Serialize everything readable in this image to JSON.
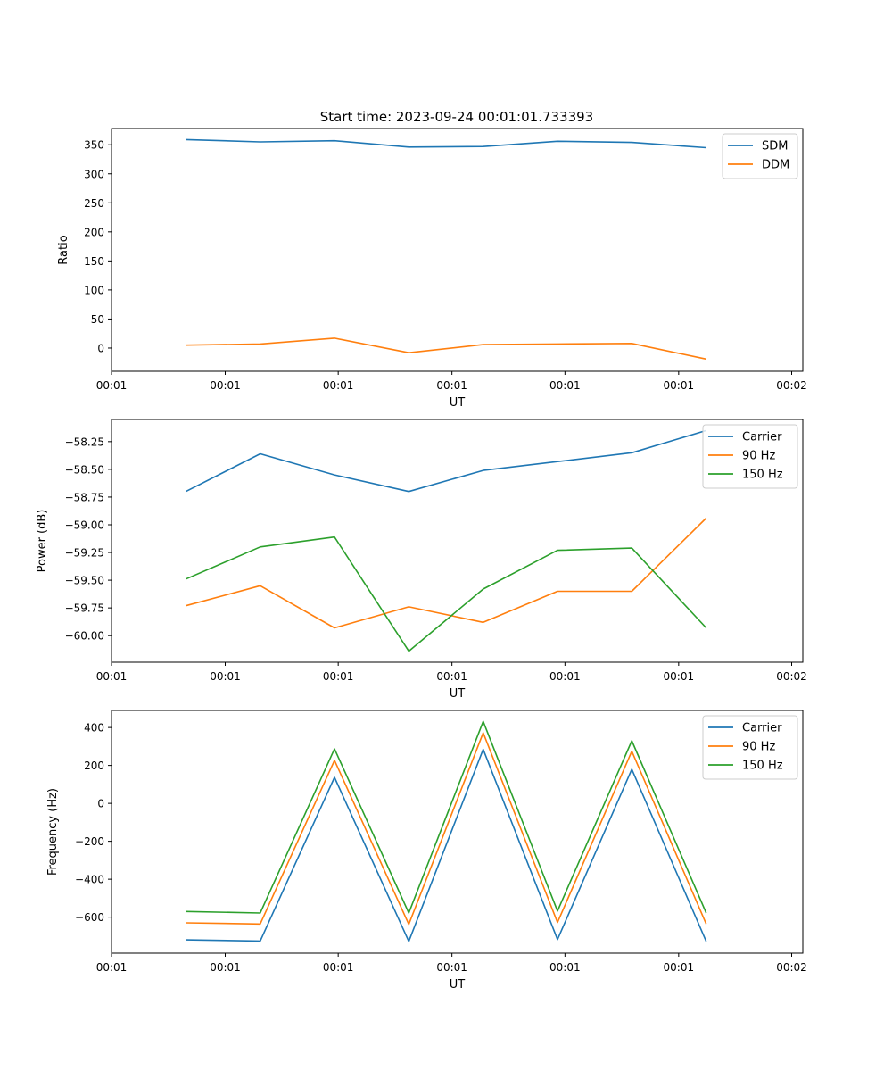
{
  "figure_title": "Start time: 2023-09-24 00:01:01.733393",
  "colors": {
    "blue": "#1f77b4",
    "orange": "#ff7f0e",
    "green": "#2ca02c"
  },
  "chart_data": [
    {
      "type": "line",
      "xlabel": "UT",
      "ylabel": "Ratio",
      "x": [
        1,
        2,
        3,
        4,
        5,
        6,
        7,
        8
      ],
      "xlim": [
        0,
        9.3
      ],
      "x_ticks": [
        0,
        1.53,
        3.05,
        4.58,
        6.1,
        7.63,
        9.15
      ],
      "x_tick_labels": [
        "00:01",
        "00:01",
        "00:01",
        "00:01",
        "00:01",
        "00:01",
        "00:02"
      ],
      "ylim": [
        -40,
        378
      ],
      "y_ticks": [
        0,
        50,
        100,
        150,
        200,
        250,
        300,
        350
      ],
      "y_tick_labels": [
        "0",
        "50",
        "100",
        "150",
        "200",
        "250",
        "300",
        "350"
      ],
      "legend_position": "top-right",
      "series": [
        {
          "name": "SDM",
          "color": "#1f77b4",
          "values": [
            359,
            355,
            357,
            346,
            347,
            356,
            354,
            345
          ]
        },
        {
          "name": "DDM",
          "color": "#ff7f0e",
          "values": [
            5,
            7,
            17,
            -8,
            6,
            7,
            8,
            -19
          ]
        }
      ]
    },
    {
      "type": "line",
      "xlabel": "UT",
      "ylabel": "Power (dB)",
      "x": [
        1,
        2,
        3,
        4,
        5,
        6,
        7,
        8
      ],
      "xlim": [
        0,
        9.3
      ],
      "x_ticks": [
        0,
        1.53,
        3.05,
        4.58,
        6.1,
        7.63,
        9.15
      ],
      "x_tick_labels": [
        "00:01",
        "00:01",
        "00:01",
        "00:01",
        "00:01",
        "00:01",
        "00:02"
      ],
      "ylim": [
        -60.24,
        -58.05
      ],
      "y_ticks": [
        -60.0,
        -59.75,
        -59.5,
        -59.25,
        -59.0,
        -58.75,
        -58.5,
        -58.25
      ],
      "y_tick_labels": [
        "−60.00",
        "−59.75",
        "−59.50",
        "−59.25",
        "−59.00",
        "−58.75",
        "−58.50",
        "−58.25"
      ],
      "legend_position": "top-right",
      "series": [
        {
          "name": "Carrier",
          "color": "#1f77b4",
          "values": [
            -58.7,
            -58.36,
            -58.55,
            -58.7,
            -58.51,
            -58.43,
            -58.35,
            -58.15
          ]
        },
        {
          "name": "90 Hz",
          "color": "#ff7f0e",
          "values": [
            -59.73,
            -59.55,
            -59.93,
            -59.74,
            -59.88,
            -59.6,
            -59.6,
            -58.94
          ]
        },
        {
          "name": "150 Hz",
          "color": "#2ca02c",
          "values": [
            -59.49,
            -59.2,
            -59.11,
            -60.14,
            -59.58,
            -59.23,
            -59.21,
            -59.93
          ]
        }
      ]
    },
    {
      "type": "line",
      "xlabel": "UT",
      "ylabel": "Frequency (Hz)",
      "x": [
        1,
        2,
        3,
        4,
        5,
        6,
        7,
        8
      ],
      "xlim": [
        0,
        9.3
      ],
      "x_ticks": [
        0,
        1.53,
        3.05,
        4.58,
        6.1,
        7.63,
        9.15
      ],
      "x_tick_labels": [
        "00:01",
        "00:01",
        "00:01",
        "00:01",
        "00:01",
        "00:01",
        "00:02"
      ],
      "ylim": [
        -790,
        490
      ],
      "y_ticks": [
        -600,
        -400,
        -200,
        0,
        200,
        400
      ],
      "y_tick_labels": [
        "−600",
        "−400",
        "−200",
        "0",
        "200",
        "400"
      ],
      "legend_position": "top-right",
      "series": [
        {
          "name": "Carrier",
          "color": "#1f77b4",
          "values": [
            -720,
            -726,
            137,
            -728,
            285,
            -718,
            180,
            -728
          ]
        },
        {
          "name": "90 Hz",
          "color": "#ff7f0e",
          "values": [
            -630,
            -636,
            227,
            -638,
            372,
            -628,
            275,
            -636
          ]
        },
        {
          "name": "150 Hz",
          "color": "#2ca02c",
          "values": [
            -570,
            -578,
            287,
            -578,
            432,
            -568,
            330,
            -578
          ]
        }
      ]
    }
  ]
}
